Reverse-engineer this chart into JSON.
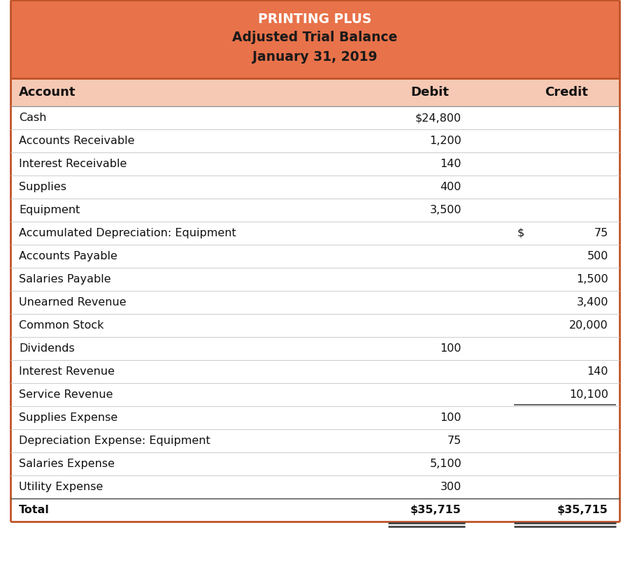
{
  "title_line1": "PRINTING PLUS",
  "title_line2": "Adjusted Trial Balance",
  "title_line3": "January 31, 2019",
  "header_bg": "#E8724A",
  "header_text_color1": "#FFFFFF",
  "header_text_color2": "#1A1A1A",
  "col_header_bg": "#F5C9B3",
  "table_bg": "#FFFFFF",
  "col_headers": [
    "Account",
    "Debit",
    "Credit"
  ],
  "rows": [
    {
      "account": "Cash",
      "debit": "$24,800",
      "credit": ""
    },
    {
      "account": "Accounts Receivable",
      "debit": "1,200",
      "credit": ""
    },
    {
      "account": "Interest Receivable",
      "debit": "140",
      "credit": ""
    },
    {
      "account": "Supplies",
      "debit": "400",
      "credit": ""
    },
    {
      "account": "Equipment",
      "debit": "3,500",
      "credit": ""
    },
    {
      "account": "Accumulated Depreciation: Equipment",
      "debit": "",
      "credit_dollar": "$",
      "credit": "75"
    },
    {
      "account": "Accounts Payable",
      "debit": "",
      "credit_dollar": "",
      "credit": "500"
    },
    {
      "account": "Salaries Payable",
      "debit": "",
      "credit_dollar": "",
      "credit": "1,500"
    },
    {
      "account": "Unearned Revenue",
      "debit": "",
      "credit_dollar": "",
      "credit": "3,400"
    },
    {
      "account": "Common Stock",
      "debit": "",
      "credit_dollar": "",
      "credit": "20,000"
    },
    {
      "account": "Dividends",
      "debit": "100",
      "credit_dollar": "",
      "credit": ""
    },
    {
      "account": "Interest Revenue",
      "debit": "",
      "credit_dollar": "",
      "credit": "140"
    },
    {
      "account": "Service Revenue",
      "debit": "",
      "credit_dollar": "",
      "credit": "10,100"
    },
    {
      "account": "Supplies Expense",
      "debit": "100",
      "credit_dollar": "",
      "credit": ""
    },
    {
      "account": "Depreciation Expense: Equipment",
      "debit": "75",
      "credit_dollar": "",
      "credit": ""
    },
    {
      "account": "Salaries Expense",
      "debit": "5,100",
      "credit_dollar": "",
      "credit": ""
    },
    {
      "account": "Utility Expense",
      "debit": "300",
      "credit_dollar": "",
      "credit": ""
    },
    {
      "account": "Total",
      "debit": "$35,715",
      "credit_dollar": "",
      "credit": "$35,715"
    }
  ],
  "service_revenue_underline_row": 12,
  "total_row": 17,
  "outer_border_color": "#C05328",
  "row_line_color": "#CCCCCC",
  "total_line_color": "#444444"
}
